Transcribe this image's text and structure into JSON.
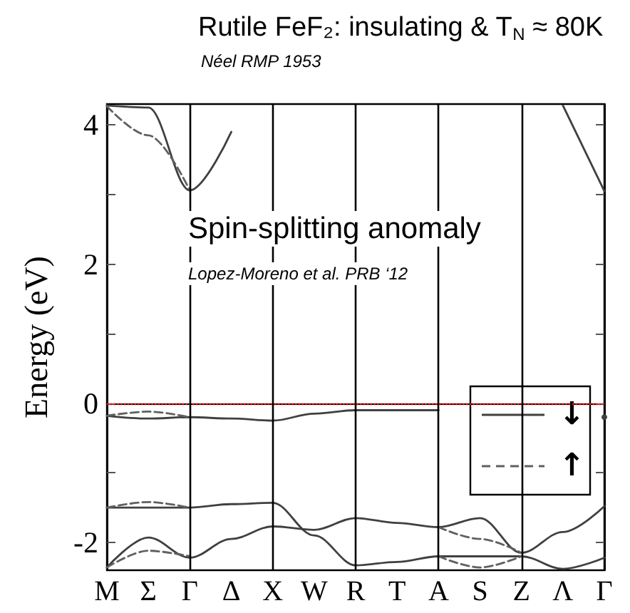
{
  "chart_data": {
    "type": "line",
    "title": "Rutile FeF₂: insulating & T$_{N}$ ≈ 80K",
    "subtitle": "Néel RMP 1953",
    "ylabel": "Energy (eV)",
    "annotations": [
      "Spin-splitting anomaly",
      "Lopez-Moreno et al. PRB ‘12"
    ],
    "categories": [
      "M",
      "Σ",
      "Γ",
      "Δ",
      "X",
      "W",
      "R",
      "T",
      "A",
      "S",
      "Z",
      "Λ",
      "Γ"
    ],
    "ylim": [
      -2.4,
      4.3
    ],
    "yticks": [
      -2,
      {
        "value": -1,
        "label": null
      },
      0,
      {
        "value": 1,
        "label": null
      },
      2,
      {
        "value": 3,
        "label": null
      },
      4
    ],
    "ref_lines": [
      {
        "axis": "y",
        "value": 0,
        "color": "#ff0000",
        "line_style": "dotted"
      },
      {
        "axis": "x",
        "value": "Γ",
        "color": "#000000"
      },
      {
        "axis": "x",
        "value": "X",
        "color": "#000000"
      },
      {
        "axis": "x",
        "value": "R",
        "color": "#000000"
      },
      {
        "axis": "x",
        "value": "A",
        "color": "#000000"
      },
      {
        "axis": "x",
        "value": "Z",
        "color": "#000000"
      }
    ],
    "legend": "right",
    "marker": "none",
    "grid": false,
    "series": [
      {
        "name": "↓",
        "color": "#404040",
        "line_style": "solid",
        "values": [
          4.28,
          4.25,
          3.06,
          3.9,
          null,
          null,
          null,
          null,
          null,
          null,
          null,
          4.28,
          3.05
        ]
      },
      {
        "color": "#404040",
        "line_style": "solid",
        "values": [
          -0.18,
          -0.22,
          -0.2,
          -0.22,
          -0.25,
          -0.15,
          -0.1,
          -0.1,
          -0.1,
          null,
          null,
          null,
          -0.2
        ]
      },
      {
        "color": "#404040",
        "line_style": "solid",
        "values": [
          -1.5,
          -1.5,
          -1.5,
          -1.45,
          -1.43,
          -1.9,
          -2.33,
          -2.28,
          -2.2,
          -2.2,
          -2.2,
          -2.38,
          -2.22
        ]
      },
      {
        "color": "#404040",
        "line_style": "solid",
        "values": [
          -2.36,
          -1.93,
          -2.22,
          -1.95,
          -1.77,
          -1.82,
          -1.65,
          -1.72,
          -1.78,
          -1.65,
          -2.15,
          -1.85,
          -1.48
        ]
      },
      {
        "name": "↑",
        "color": "#606060",
        "line_style": "dashed",
        "values": [
          4.27,
          3.85,
          3.06,
          null,
          null,
          null,
          null,
          null,
          null,
          null,
          null,
          null,
          null
        ]
      },
      {
        "color": "#606060",
        "line_style": "dashed",
        "values": [
          -0.18,
          -0.12,
          -0.2,
          null,
          null,
          null,
          null,
          null,
          null,
          null,
          null,
          null,
          null
        ]
      },
      {
        "color": "#606060",
        "line_style": "dashed",
        "values": [
          -1.5,
          -1.42,
          -1.5,
          null,
          null,
          null,
          null,
          null,
          -2.2,
          -2.36,
          -2.2,
          null,
          null
        ]
      },
      {
        "color": "#606060",
        "line_style": "dashed",
        "values": [
          -2.36,
          -2.12,
          -2.2,
          null,
          null,
          null,
          null,
          null,
          -1.78,
          -1.95,
          -2.15,
          null,
          null
        ]
      }
    ]
  }
}
